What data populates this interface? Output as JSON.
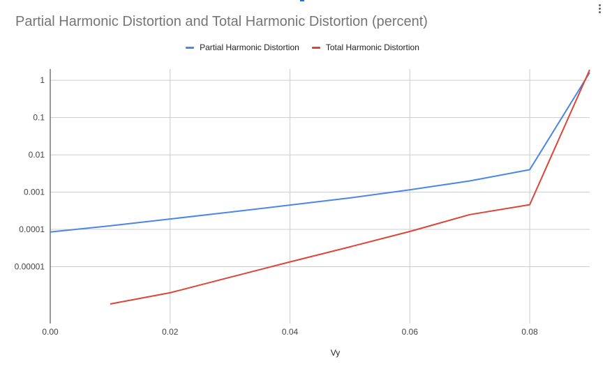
{
  "title": "Partial Harmonic Distortion and Total Harmonic Distortion (percent)",
  "chart_data": {
    "type": "line",
    "title": "Partial Harmonic Distortion and Total Harmonic Distortion (percent)",
    "xlabel": "Vy",
    "ylabel": "",
    "xlim": [
      0,
      0.09
    ],
    "ylim": [
      3e-07,
      2
    ],
    "yscale": "log",
    "grid": true,
    "legend": "top-center",
    "x_ticks": [
      {
        "value": 0,
        "label": "0.00"
      },
      {
        "value": 0.02,
        "label": "0.02"
      },
      {
        "value": 0.04,
        "label": "0.04"
      },
      {
        "value": 0.06,
        "label": "0.06"
      },
      {
        "value": 0.08,
        "label": "0.08"
      }
    ],
    "y_ticks": [
      {
        "value": 1,
        "label": "1"
      },
      {
        "value": 0.1,
        "label": "0.1"
      },
      {
        "value": 0.01,
        "label": "0.01"
      },
      {
        "value": 0.001,
        "label": "0.001"
      },
      {
        "value": 0.0001,
        "label": "0.0001"
      },
      {
        "value": 1e-05,
        "label": "0.00001"
      }
    ],
    "series": [
      {
        "name": "Partial Harmonic Distortion",
        "color": "#4a86e8",
        "points": [
          [
            0.0,
            8.5e-05
          ],
          [
            0.01,
            0.000125
          ],
          [
            0.02,
            0.00019
          ],
          [
            0.03,
            0.00029
          ],
          [
            0.04,
            0.00045
          ],
          [
            0.05,
            0.0007
          ],
          [
            0.06,
            0.00115
          ],
          [
            0.07,
            0.002
          ],
          [
            0.08,
            0.004
          ],
          [
            0.09,
            1.6
          ]
        ]
      },
      {
        "name": "Total Harmonic Distortion",
        "color": "#db4437",
        "points": [
          [
            0.01,
            1e-06
          ],
          [
            0.02,
            2e-06
          ],
          [
            0.03,
            5.2e-06
          ],
          [
            0.04,
            1.35e-05
          ],
          [
            0.05,
            3.4e-05
          ],
          [
            0.06,
            8.8e-05
          ],
          [
            0.07,
            0.00025
          ],
          [
            0.08,
            0.00046
          ],
          [
            0.09,
            1.9
          ]
        ]
      }
    ]
  }
}
